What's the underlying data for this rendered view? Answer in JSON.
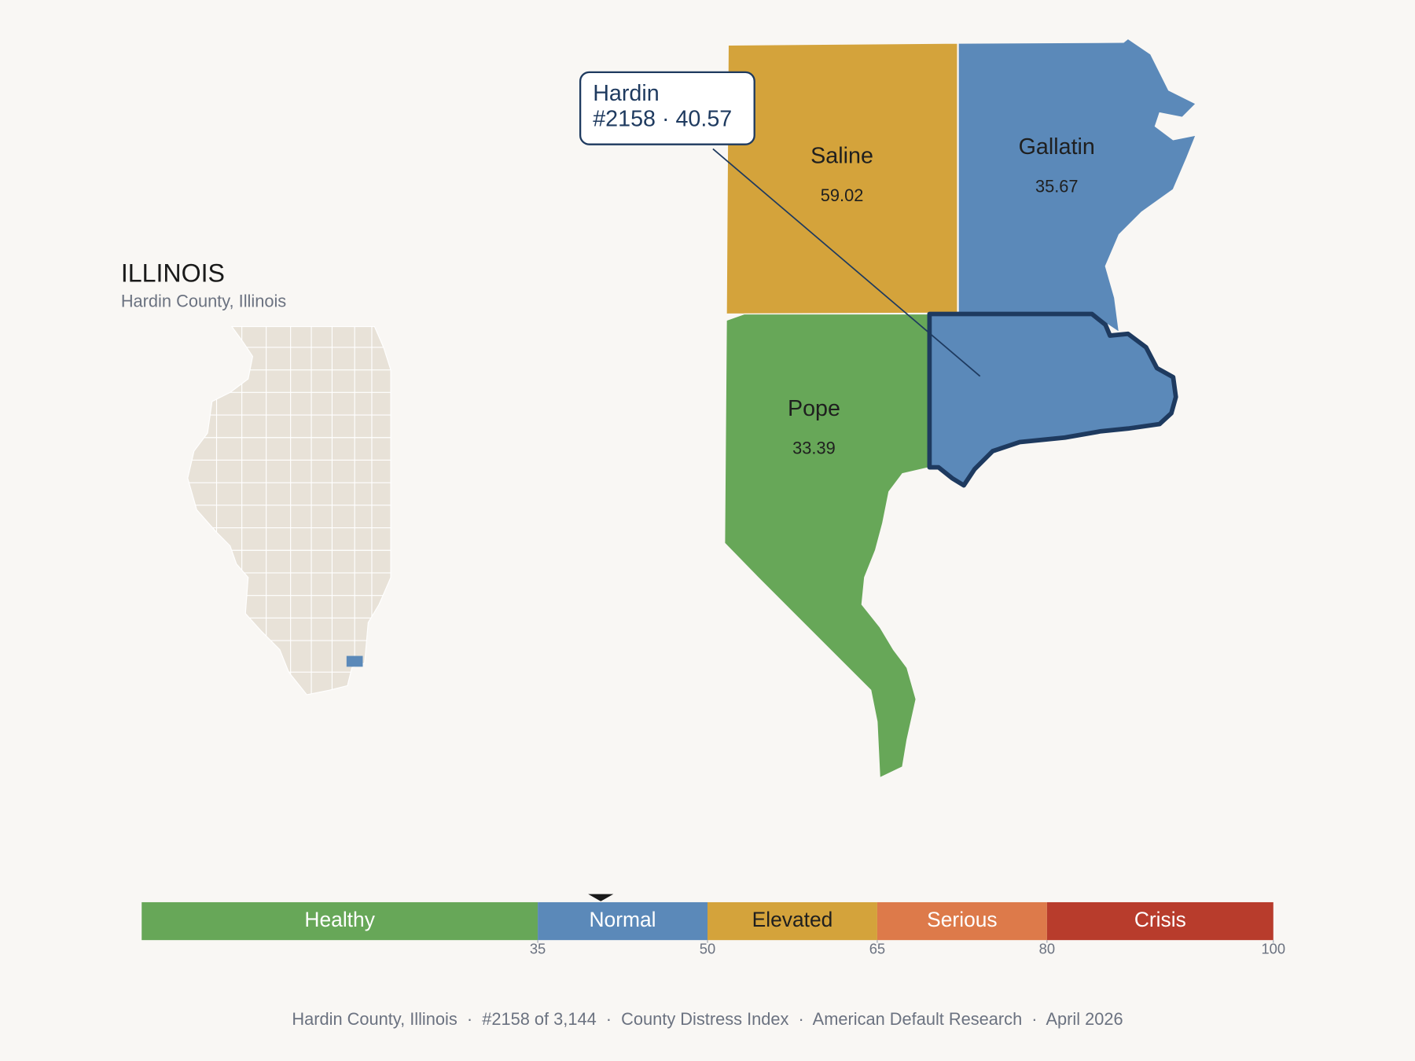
{
  "title": "ILLINOIS",
  "subtitle": "Hardin County, Illinois",
  "selected": {
    "name": "Hardin",
    "detail": "#2158 · 40.57",
    "value": 40.57
  },
  "counties": [
    {
      "name": "Saline",
      "value": 59.02
    },
    {
      "name": "Gallatin",
      "value": 35.67
    },
    {
      "name": "Pope",
      "value": 33.39
    }
  ],
  "scale": {
    "min": 0,
    "max": 100,
    "bands": [
      {
        "name": "Healthy",
        "to": 35,
        "color": "#67a758",
        "text_color": "#ffffff"
      },
      {
        "name": "Normal",
        "to": 50,
        "color": "#5b89b9",
        "text_color": "#ffffff"
      },
      {
        "name": "Elevated",
        "to": 65,
        "color": "#d4a33b",
        "text_color": "#1f1f1f"
      },
      {
        "name": "Serious",
        "to": 80,
        "color": "#dd7a4a",
        "text_color": "#ffffff"
      },
      {
        "name": "Crisis",
        "to": 100,
        "color": "#b83c2c",
        "text_color": "#ffffff"
      }
    ],
    "ticks": [
      35,
      50,
      65,
      80,
      100
    ]
  },
  "footer": "Hardin County, Illinois  ·  #2158 of 3,144  ·  County Distress Index  ·  American Default Research  ·  April 2026"
}
